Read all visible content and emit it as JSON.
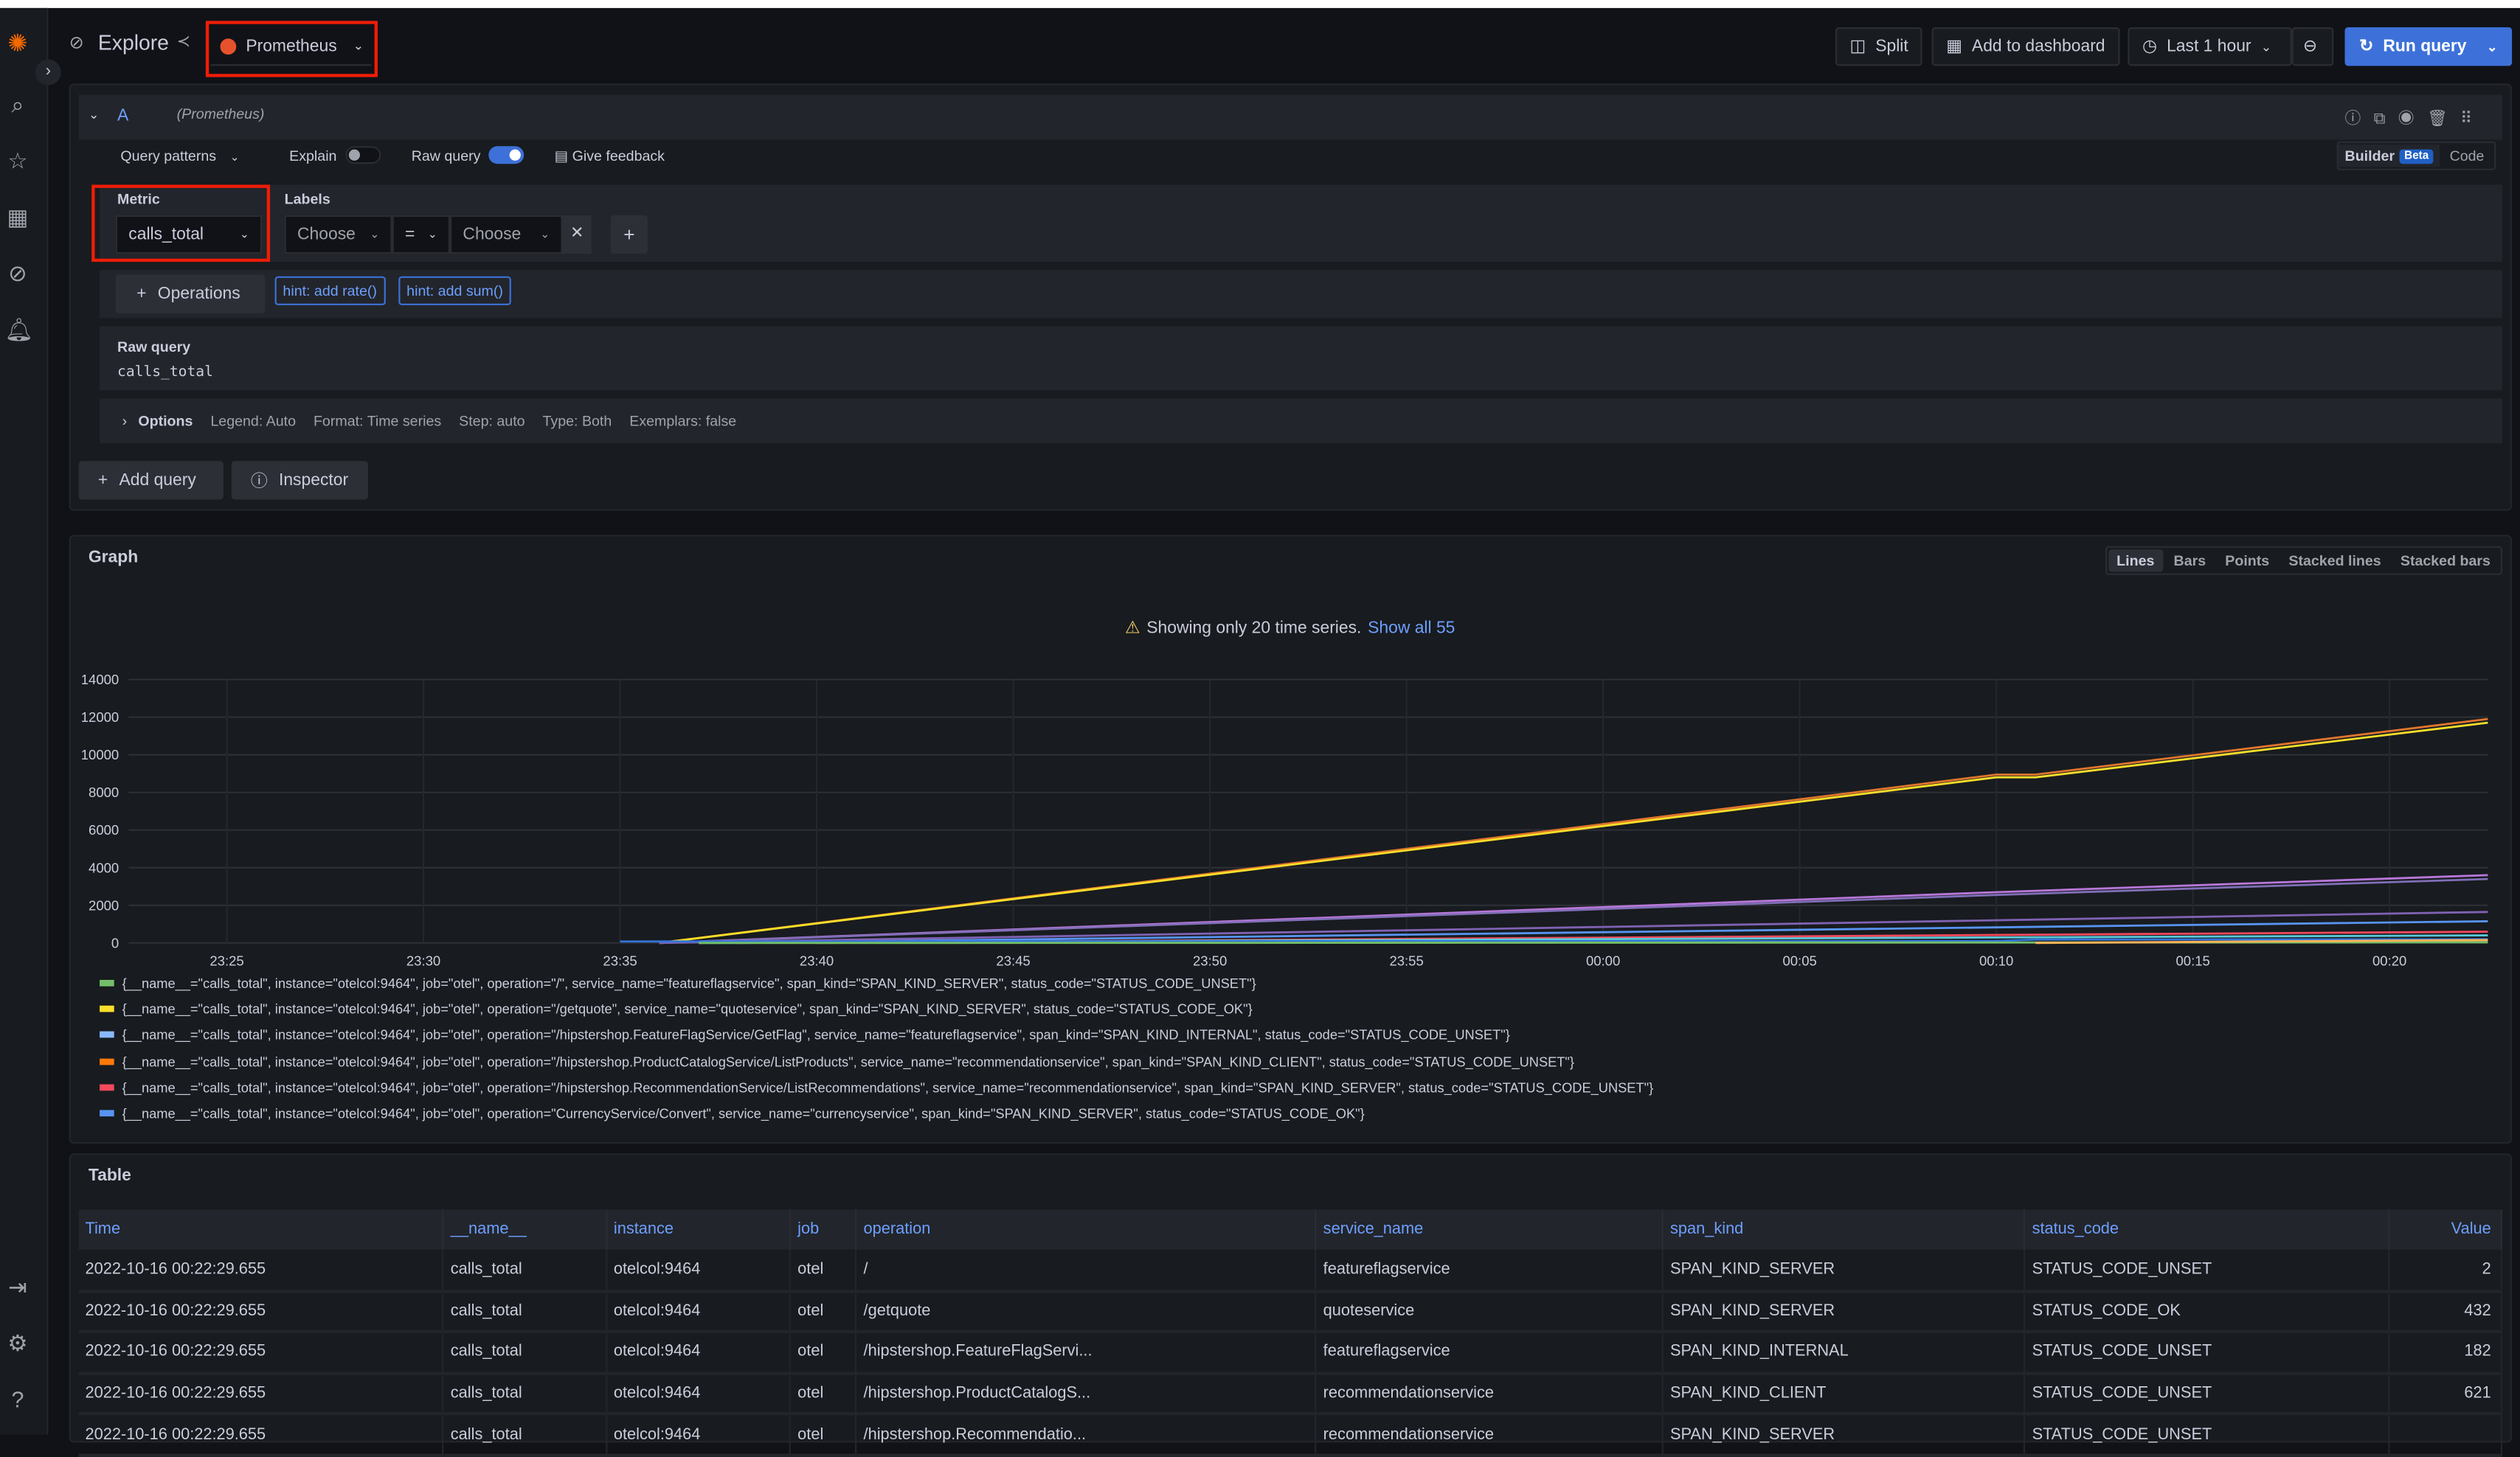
{
  "header": {
    "title": "Explore",
    "datasource": "Prometheus",
    "split": "Split",
    "add_to_dashboard": "Add to dashboard",
    "time_range": "Last 1 hour",
    "run_query": "Run query"
  },
  "query": {
    "ref": "A",
    "datasource_hint": "(Prometheus)",
    "query_patterns": "Query patterns",
    "explain": "Explain",
    "explain_on": false,
    "raw_query_label": "Raw query",
    "raw_query_on": true,
    "give_feedback": "Give feedback",
    "builder": "Builder",
    "beta": "Beta",
    "code": "Code",
    "metric_label": "Metric",
    "metric_value": "calls_total",
    "labels_label": "Labels",
    "label_choose": "Choose",
    "operator": "=",
    "value_choose": "Choose",
    "operations": "Operations",
    "hints": [
      "hint: add rate()",
      "hint: add sum()"
    ],
    "raw_query_title": "Raw query",
    "raw_query_text": "calls_total",
    "options": "Options",
    "options_summary": [
      "Legend: Auto",
      "Format: Time series",
      "Step: auto",
      "Type: Both",
      "Exemplars: false"
    ],
    "add_query": "Add query",
    "inspector": "Inspector"
  },
  "graph": {
    "title": "Graph",
    "view_modes": [
      "Lines",
      "Bars",
      "Points",
      "Stacked lines",
      "Stacked bars"
    ],
    "active_mode": "Lines",
    "warning": "Showing only 20 time series.",
    "show_all": "Show all 55",
    "legend": [
      {
        "color": "#73bf69",
        "text": "{__name__=\"calls_total\", instance=\"otelcol:9464\", job=\"otel\", operation=\"/\", service_name=\"featureflagservice\", span_kind=\"SPAN_KIND_SERVER\", status_code=\"STATUS_CODE_UNSET\"}"
      },
      {
        "color": "#fade2a",
        "text": "{__name__=\"calls_total\", instance=\"otelcol:9464\", job=\"otel\", operation=\"/getquote\", service_name=\"quoteservice\", span_kind=\"SPAN_KIND_SERVER\", status_code=\"STATUS_CODE_OK\"}"
      },
      {
        "color": "#8ab8ff",
        "text": "{__name__=\"calls_total\", instance=\"otelcol:9464\", job=\"otel\", operation=\"/hipstershop.FeatureFlagService/GetFlag\", service_name=\"featureflagservice\", span_kind=\"SPAN_KIND_INTERNAL\", status_code=\"STATUS_CODE_UNSET\"}"
      },
      {
        "color": "#ff780a",
        "text": "{__name__=\"calls_total\", instance=\"otelcol:9464\", job=\"otel\", operation=\"/hipstershop.ProductCatalogService/ListProducts\", service_name=\"recommendationservice\", span_kind=\"SPAN_KIND_CLIENT\", status_code=\"STATUS_CODE_UNSET\"}"
      },
      {
        "color": "#f2495c",
        "text": "{__name__=\"calls_total\", instance=\"otelcol:9464\", job=\"otel\", operation=\"/hipstershop.RecommendationService/ListRecommendations\", service_name=\"recommendationservice\", span_kind=\"SPAN_KIND_SERVER\", status_code=\"STATUS_CODE_UNSET\"}"
      },
      {
        "color": "#5794f2",
        "text": "{__name__=\"calls_total\", instance=\"otelcol:9464\", job=\"otel\", operation=\"CurrencyService/Convert\", service_name=\"currencyservice\", span_kind=\"SPAN_KIND_SERVER\", status_code=\"STATUS_CODE_OK\"}"
      }
    ]
  },
  "chart_data": {
    "type": "line",
    "xlim": [
      "23:22:30",
      "00:22:30"
    ],
    "ylim": [
      0,
      14000
    ],
    "grid": true,
    "legend_placement": "bottom",
    "x_ticks": [
      "23:25",
      "23:30",
      "23:35",
      "23:40",
      "23:45",
      "23:50",
      "23:55",
      "00:00",
      "00:05",
      "00:10",
      "00:15",
      "00:20"
    ],
    "y_ticks": [
      0,
      2000,
      4000,
      6000,
      8000,
      10000,
      12000,
      14000
    ],
    "series": [
      {
        "color": "#e0752d",
        "points": [
          [
            "23:36",
            0
          ],
          [
            "00:10",
            8950
          ],
          [
            "00:11",
            8950
          ],
          [
            "00:22:30",
            11900
          ]
        ]
      },
      {
        "color": "#fade2a",
        "points": [
          [
            "23:36",
            0
          ],
          [
            "00:10",
            8800
          ],
          [
            "00:11",
            8800
          ],
          [
            "00:22:30",
            11700
          ]
        ]
      },
      {
        "color": "#b877d9",
        "points": [
          [
            "23:36",
            0
          ],
          [
            "00:10",
            2700
          ],
          [
            "00:22:30",
            3600
          ]
        ]
      },
      {
        "color": "#806eb7",
        "points": [
          [
            "23:36",
            0
          ],
          [
            "00:10",
            2550
          ],
          [
            "00:22:30",
            3400
          ]
        ]
      },
      {
        "color": "#7f62b3",
        "points": [
          [
            "23:36",
            0
          ],
          [
            "00:22:30",
            1650
          ]
        ]
      },
      {
        "color": "#5794f2",
        "points": [
          [
            "23:38",
            0
          ],
          [
            "00:22:30",
            1150
          ]
        ]
      },
      {
        "color": "#f2495c",
        "points": [
          [
            "23:40",
            0
          ],
          [
            "00:22:30",
            600
          ]
        ]
      },
      {
        "color": "#5ac8d8",
        "points": [
          [
            "23:37",
            0
          ],
          [
            "00:22:30",
            400
          ]
        ]
      },
      {
        "color": "#3274d9",
        "points": [
          [
            "23:35",
            80
          ],
          [
            "00:10",
            100
          ],
          [
            "00:11",
            180
          ],
          [
            "00:22:30",
            200
          ]
        ]
      },
      {
        "color": "#73bf69",
        "points": [
          [
            "23:37",
            0
          ],
          [
            "23:43",
            0
          ],
          [
            "00:22:30",
            30
          ]
        ]
      },
      {
        "color": "#ffb357",
        "points": [
          [
            "00:11",
            0
          ],
          [
            "00:22:30",
            150
          ]
        ]
      }
    ]
  },
  "table": {
    "title": "Table",
    "columns": [
      "Time",
      "__name__",
      "instance",
      "job",
      "operation",
      "service_name",
      "span_kind",
      "status_code",
      "Value"
    ],
    "rows": [
      [
        "2022-10-16 00:22:29.655",
        "calls_total",
        "otelcol:9464",
        "otel",
        "/",
        "featureflagservice",
        "SPAN_KIND_SERVER",
        "STATUS_CODE_UNSET",
        "2"
      ],
      [
        "2022-10-16 00:22:29.655",
        "calls_total",
        "otelcol:9464",
        "otel",
        "/getquote",
        "quoteservice",
        "SPAN_KIND_SERVER",
        "STATUS_CODE_OK",
        "432"
      ],
      [
        "2022-10-16 00:22:29.655",
        "calls_total",
        "otelcol:9464",
        "otel",
        "/hipstershop.FeatureFlagServi...",
        "featureflagservice",
        "SPAN_KIND_INTERNAL",
        "STATUS_CODE_UNSET",
        "182"
      ],
      [
        "2022-10-16 00:22:29.655",
        "calls_total",
        "otelcol:9464",
        "otel",
        "/hipstershop.ProductCatalogS...",
        "recommendationservice",
        "SPAN_KIND_CLIENT",
        "STATUS_CODE_UNSET",
        "621"
      ],
      [
        "2022-10-16 00:22:29.655",
        "calls_total",
        "otelcol:9464",
        "otel",
        "/hipstershop.Recommendatio...",
        "recommendationservice",
        "SPAN_KIND_SERVER",
        "STATUS_CODE_UNSET",
        ""
      ]
    ]
  },
  "colors": {
    "accent": "#3d71d9",
    "highlight": "#ee1d08",
    "logo": "#f46800"
  }
}
